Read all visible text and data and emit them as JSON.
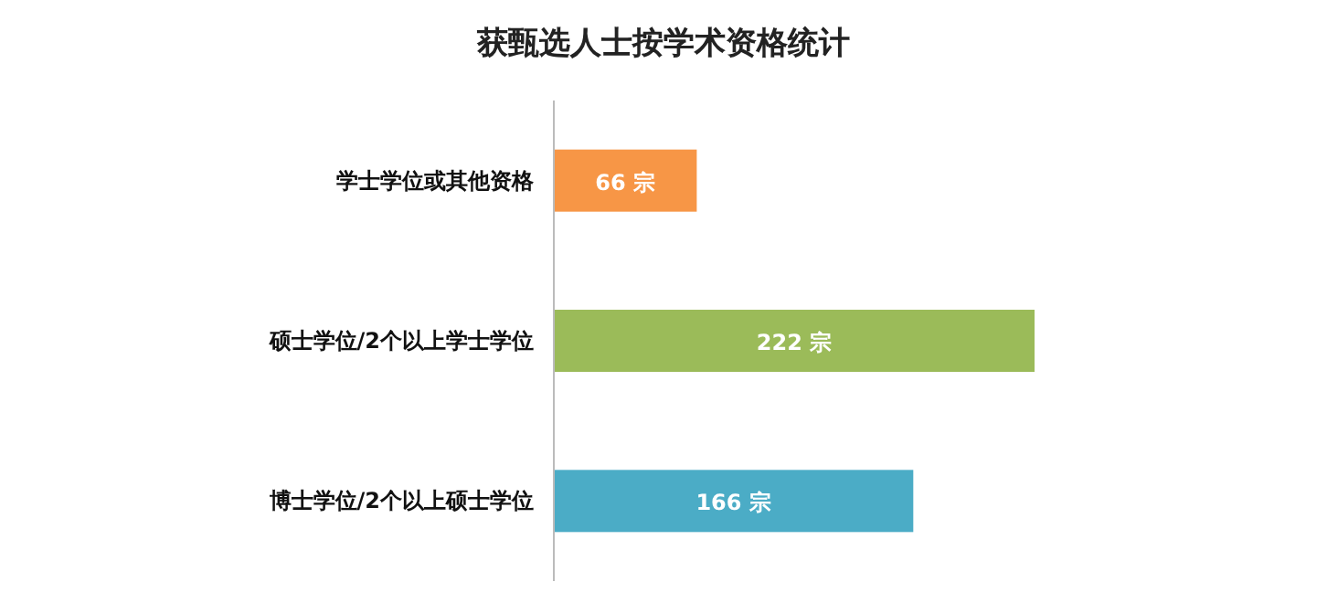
{
  "chart_data": {
    "type": "bar",
    "orientation": "horizontal",
    "title": "获甄选人士按学术资格统计",
    "categories": [
      "学士学位或其他资格",
      "硕士学位/2个以上学士学位",
      "博士学位/2个以上硕士学位"
    ],
    "values": [
      66,
      222,
      166
    ],
    "colors": [
      "#f79646",
      "#9bbb59",
      "#4bacc6"
    ],
    "value_labels": [
      "66 宗",
      "222 宗",
      "166 宗"
    ]
  }
}
